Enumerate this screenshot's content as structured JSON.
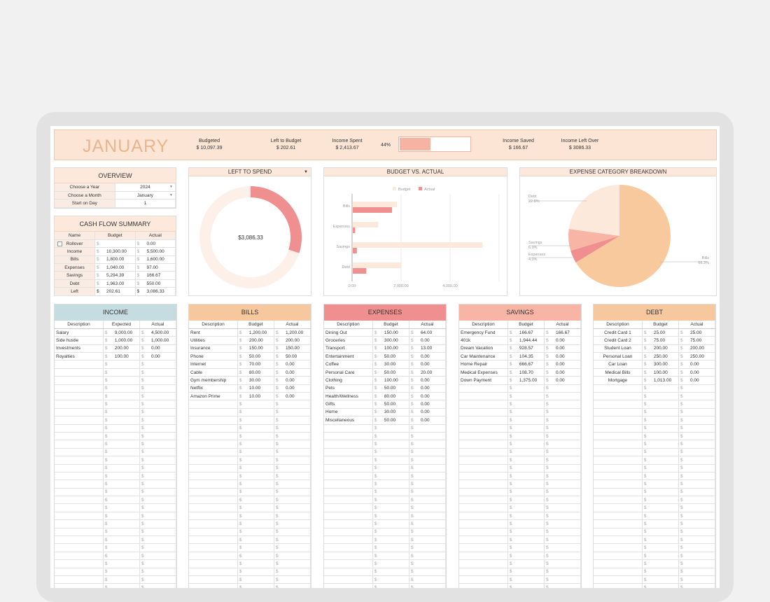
{
  "header": {
    "month": "JANUARY",
    "pct": "44%",
    "progress": 0.44,
    "stats": [
      {
        "label": "Budgeted",
        "value": "$ 10,097.39"
      },
      {
        "label": "Left to Budget",
        "value": "$ 202.61"
      },
      {
        "label": "Income Spent",
        "value": "$ 2,413.67"
      },
      {
        "label": "Income Saved",
        "value": "$ 166.67"
      },
      {
        "label": "Income Left Over",
        "value": "$ 3086.33"
      }
    ]
  },
  "overview": {
    "title": "OVERVIEW",
    "rows": [
      [
        "Choose a Year",
        "2024"
      ],
      [
        "Choose a Month",
        "January"
      ],
      [
        "Start on Day",
        "1"
      ]
    ]
  },
  "cashflow": {
    "title": "CASH FLOW SUMMARY",
    "cols": [
      "Name",
      "Budget",
      "Actual"
    ],
    "rows": [
      [
        "Rollover",
        "",
        "0.00"
      ],
      [
        "Income",
        "10,300.00",
        "5,500.00"
      ],
      [
        "Bills",
        "1,800.00",
        "1,600.00"
      ],
      [
        "Expenses",
        "1,040.00",
        "97.00"
      ],
      [
        "Savings",
        "5,294.39",
        "166.67"
      ],
      [
        "Debt",
        "1,963.00",
        "550.00"
      ],
      [
        "Left",
        "202.61",
        "3,086.33"
      ]
    ]
  },
  "left_to_spend": {
    "title": "LEFT TO SPEND",
    "value": "$3,086.33",
    "fraction": 0.3
  },
  "budget_vs_actual": {
    "title": "BUDGET VS. ACTUAL",
    "legend": [
      "Budget",
      "Actual"
    ]
  },
  "breakdown": {
    "title": "EXPENSE CATEGORY BREAKDOWN",
    "labels": [
      [
        "Debt",
        "22.8%"
      ],
      [
        "Savings",
        "6.9%"
      ],
      [
        "Expenses",
        "4.0%"
      ],
      [
        "Bills",
        "66.3%"
      ]
    ]
  },
  "chart_data": [
    {
      "type": "bar",
      "title": "BUDGET VS. ACTUAL",
      "categories": [
        "Bills",
        "Expenses",
        "Savings",
        "Debt"
      ],
      "series": [
        {
          "name": "Budget",
          "values": [
            1800,
            1040,
            5294.39,
            1963
          ]
        },
        {
          "name": "Actual",
          "values": [
            1600,
            97,
            166.67,
            550
          ]
        }
      ],
      "xlim": [
        0,
        6000
      ],
      "ticks": [
        "0.00",
        "2,000.00",
        "4,000.00"
      ]
    },
    {
      "type": "pie",
      "title": "EXPENSE CATEGORY BREAKDOWN",
      "categories": [
        "Bills",
        "Expenses",
        "Savings",
        "Debt"
      ],
      "values": [
        66.3,
        4.0,
        6.9,
        22.8
      ]
    },
    {
      "type": "pie",
      "title": "LEFT TO SPEND",
      "categories": [
        "Spent",
        "Left"
      ],
      "values": [
        70,
        30
      ]
    }
  ],
  "colors": {
    "income": "#c5dde0",
    "bills": "#f7c79e",
    "expenses": "#ef8f8f",
    "savings": "#f8b5a5",
    "debt": "#f7c79e"
  },
  "categories": [
    {
      "title": "INCOME",
      "cols": [
        "Description",
        "Expected",
        "Actual"
      ],
      "rows": [
        [
          "Salary",
          "9,000.00",
          "4,500.00"
        ],
        [
          "Side hustle",
          "1,000.00",
          "1,000.00"
        ],
        [
          "Investments",
          "200.00",
          "0.00"
        ],
        [
          "Royalties",
          "100.00",
          "0.00"
        ]
      ]
    },
    {
      "title": "BILLS",
      "cols": [
        "Description",
        "Budget",
        "Actual"
      ],
      "rows": [
        [
          "Rent",
          "1,200.00",
          "1,200.00"
        ],
        [
          "Utilities",
          "200.00",
          "200.00"
        ],
        [
          "Insurance",
          "150.00",
          "150.00"
        ],
        [
          "Phone",
          "50.00",
          "50.00"
        ],
        [
          "Internet",
          "70.00",
          "0.00"
        ],
        [
          "Cable",
          "80.00",
          "0.00"
        ],
        [
          "Gym membership",
          "30.00",
          "0.00"
        ],
        [
          "Netflix",
          "10.00",
          "0.00"
        ],
        [
          "Amazon Prime",
          "10.00",
          "0.00"
        ]
      ]
    },
    {
      "title": "EXPENSES",
      "cols": [
        "Description",
        "Budget",
        "Actual"
      ],
      "rows": [
        [
          "Dining Out",
          "150.00",
          "64.00"
        ],
        [
          "Groceries",
          "300.00",
          "0.00"
        ],
        [
          "Transport",
          "100.00",
          "13.00"
        ],
        [
          "Entertainment",
          "50.00",
          "0.00"
        ],
        [
          "Coffee",
          "30.00",
          "0.00"
        ],
        [
          "Personal Care",
          "50.00",
          "20.00"
        ],
        [
          "Clothing",
          "100.00",
          "0.00"
        ],
        [
          "Pets",
          "50.00",
          "0.00"
        ],
        [
          "Health/Wellness",
          "80.00",
          "0.00"
        ],
        [
          "Gifts",
          "50.00",
          "0.00"
        ],
        [
          "Home",
          "30.00",
          "0.00"
        ],
        [
          "Miscellaneous",
          "50.00",
          "0.00"
        ]
      ]
    },
    {
      "title": "SAVINGS",
      "cols": [
        "Description",
        "Budget",
        "Actual"
      ],
      "rows": [
        [
          "Emergency Fund",
          "166.67",
          "166.67"
        ],
        [
          "401k",
          "1,944.44",
          "0.00"
        ],
        [
          "Dream Vacation",
          "928.57",
          "0.00"
        ],
        [
          "Car Maintenance",
          "104.35",
          "0.00"
        ],
        [
          "Home Repair",
          "666.67",
          "0.00"
        ],
        [
          "Medical Expenses",
          "108.70",
          "0.00"
        ],
        [
          "Down Payment",
          "1,375.00",
          "0.00"
        ]
      ]
    },
    {
      "title": "DEBT",
      "cols": [
        "Description",
        "Budget",
        "Actual"
      ],
      "rows": [
        [
          "Credit Card 1",
          "25.00",
          "25.00"
        ],
        [
          "Credit Card 2",
          "75.00",
          "75.00"
        ],
        [
          "Student Loan",
          "200.00",
          "200.00"
        ],
        [
          "Personal Loan",
          "250.00",
          "250.00"
        ],
        [
          "Car Loan",
          "300.00",
          "0.00"
        ],
        [
          "Medical Bills",
          "100.00",
          "0.00"
        ],
        [
          "Mortgage",
          "1,013.00",
          "0.00"
        ]
      ]
    }
  ]
}
